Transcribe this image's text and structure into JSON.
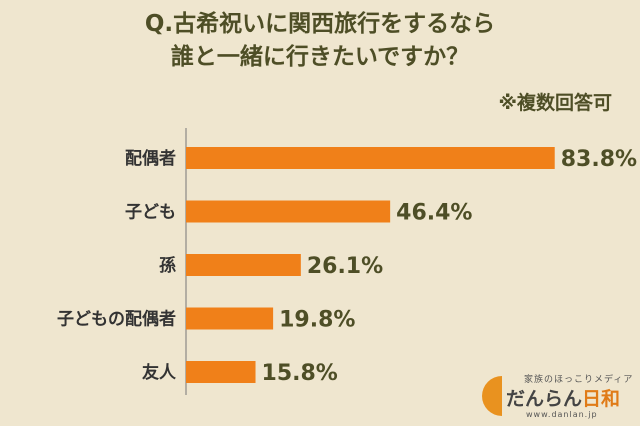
{
  "header": {
    "title_line1": "Q.古希祝いに関西旅行をするなら",
    "title_line2": "誰と一緒に行きたいですか？",
    "note": "※複数回答可"
  },
  "chart_data": {
    "type": "bar",
    "orientation": "horizontal",
    "categories": [
      "配偶者",
      "子ども",
      "孫",
      "子どもの配偶者",
      "友人"
    ],
    "values": [
      83.8,
      46.4,
      26.1,
      19.8,
      15.8
    ],
    "value_labels": [
      "83.8%",
      "46.4%",
      "26.1%",
      "19.8%",
      "15.8%"
    ],
    "unit": "%",
    "xlim": [
      0,
      100
    ],
    "bar_color": "#F08019",
    "grid": false
  },
  "logo": {
    "tagline": "家族のほっこりメディア",
    "name_main": "だんらん",
    "name_accent": "日和",
    "url": "www.danlan.jp"
  },
  "colors": {
    "background": "#EFE6CF",
    "title_text": "#4E4E26",
    "bar": "#F08019",
    "axis": "#777777"
  }
}
